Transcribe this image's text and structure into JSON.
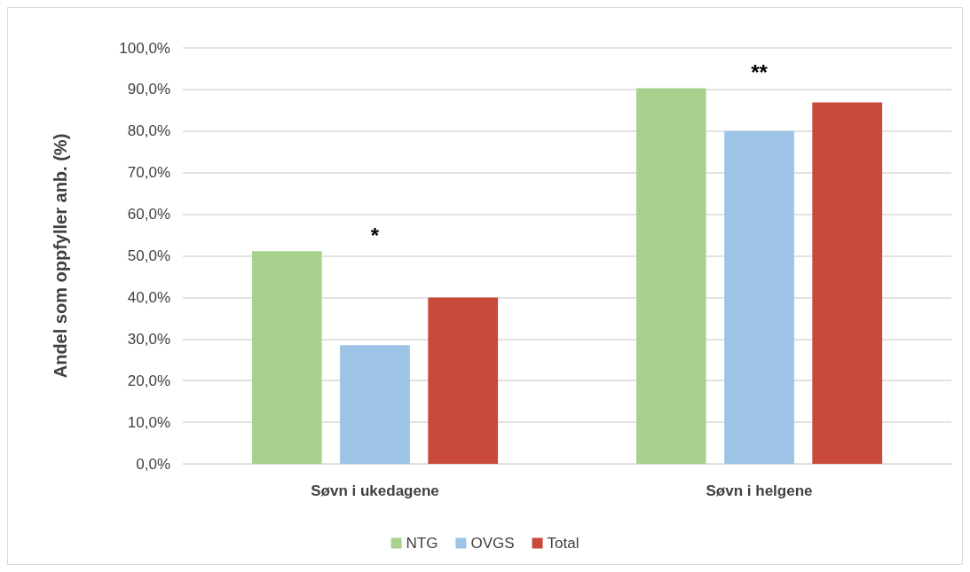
{
  "chart_data": {
    "type": "bar",
    "ylabel": "Andel som oppfyller anb. (%)",
    "categories": [
      "Søvn i ukedagene",
      "Søvn i helgene"
    ],
    "series": [
      {
        "name": "NTG",
        "color": "#a9d18e",
        "values": [
          51.1,
          90.3
        ]
      },
      {
        "name": "OVGS",
        "color": "#9dc3e6",
        "values": [
          28.5,
          80.0
        ]
      },
      {
        "name": "Total",
        "color": "#c9493a",
        "values": [
          40.0,
          86.9
        ]
      }
    ],
    "ylim": [
      0,
      100
    ],
    "yticks": [
      {
        "value": 0,
        "label": "0,0%"
      },
      {
        "value": 10,
        "label": "10,0%"
      },
      {
        "value": 20,
        "label": "20,0%"
      },
      {
        "value": 30,
        "label": "30,0%"
      },
      {
        "value": 40,
        "label": "40,0%"
      },
      {
        "value": 50,
        "label": "50,0%"
      },
      {
        "value": 60,
        "label": "60,0%"
      },
      {
        "value": 70,
        "label": "70,0%"
      },
      {
        "value": 80,
        "label": "80,0%"
      },
      {
        "value": 90,
        "label": "90,0%"
      },
      {
        "value": 100,
        "label": "100,0%"
      }
    ],
    "annotations": [
      "*",
      "**"
    ],
    "grid": "y",
    "legend": "bottom"
  }
}
